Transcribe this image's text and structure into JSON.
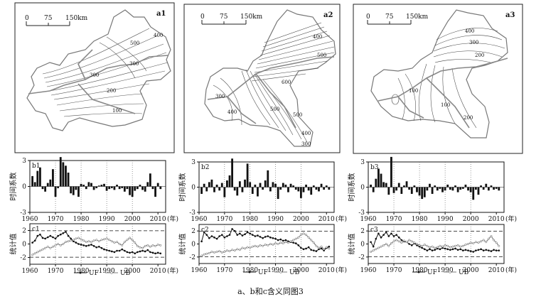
{
  "maps": [
    {
      "id": "a1",
      "scale": {
        "ticks": [
          "0",
          "75",
          "150km"
        ]
      },
      "contour_labels": [
        "500",
        "400",
        "300",
        "300",
        "200",
        "100"
      ]
    },
    {
      "id": "a2",
      "scale": {
        "ticks": [
          "0",
          "75",
          "150km"
        ]
      },
      "contour_labels": [
        "400",
        "500",
        "300",
        "400",
        "500",
        "600",
        "500",
        "400",
        "300"
      ]
    },
    {
      "id": "a3",
      "scale": {
        "ticks": [
          "0",
          "75",
          "150km"
        ]
      },
      "contour_labels": [
        "400",
        "300",
        "200",
        "100",
        "100",
        "200"
      ]
    }
  ],
  "chart_data": [
    {
      "id": "b1",
      "type": "bar",
      "ylabel": "时间系数",
      "xlabel": "(年)",
      "yticks": [
        "3",
        "0",
        "-3"
      ],
      "xticks": [
        "1960",
        "1970",
        "1980",
        "1990",
        "2000",
        "2010"
      ],
      "ylim": [
        -3,
        3
      ],
      "x_start": 1961,
      "values": [
        1.2,
        0.5,
        1.8,
        2.2,
        -0.3,
        -0.6,
        0.4,
        0.8,
        2.0,
        -1.2,
        -0.2,
        3.4,
        2.8,
        2.4,
        1.6,
        -0.8,
        -1.0,
        -0.4,
        -1.2,
        0.3,
        0.2,
        -0.3,
        0.5,
        0.4,
        -0.4,
        -0.2,
        0.1,
        0.2,
        0.3,
        -0.5,
        -0.3,
        -0.2,
        -0.4,
        0.2,
        -0.3,
        -0.2,
        -0.6,
        -0.3,
        -1.0,
        -1.2,
        -0.5,
        -0.3,
        0.2,
        -0.4,
        -0.6,
        0.5,
        1.5,
        -0.3,
        -1.2,
        0.4,
        -0.3
      ]
    },
    {
      "id": "b2",
      "type": "bar",
      "ylabel": "时间系数",
      "xlabel": "(年)",
      "yticks": [
        "3",
        "0",
        "-3"
      ],
      "xticks": [
        "1960",
        "1970",
        "1980",
        "1990",
        "2000",
        "2010"
      ],
      "ylim": [
        -3,
        3
      ],
      "x_start": 1961,
      "values": [
        -0.8,
        0.4,
        -0.5,
        0.6,
        0.9,
        -0.6,
        0.3,
        -0.4,
        0.5,
        -1.2,
        0.8,
        1.4,
        3.4,
        -0.4,
        -1.0,
        0.7,
        -0.6,
        0.9,
        2.8,
        0.6,
        -0.8,
        0.3,
        -1.1,
        0.5,
        -0.3,
        0.8,
        2.0,
        -0.5,
        0.6,
        0.4,
        -1.4,
        -0.3,
        0.5,
        0.3,
        -0.6,
        0.4,
        0.2,
        -0.3,
        -0.5,
        -1.3,
        -0.6,
        0.3,
        -0.4,
        -0.9,
        0.2,
        -0.3,
        -0.5,
        0.4,
        -0.3,
        0.2,
        -0.3
      ]
    },
    {
      "id": "b3",
      "type": "bar",
      "ylabel": "时间系数",
      "xlabel": "(年)",
      "yticks": [
        "3",
        "0",
        "-3"
      ],
      "xticks": [
        "1960",
        "1970",
        "1980",
        "1990",
        "2000",
        "2010"
      ],
      "ylim": [
        -3,
        3
      ],
      "x_start": 1961,
      "values": [
        0.3,
        -0.6,
        1.0,
        2.2,
        1.6,
        0.6,
        0.5,
        -0.9,
        3.6,
        -0.7,
        -0.4,
        0.5,
        -0.8,
        0.2,
        0.7,
        -0.3,
        -0.8,
        0.2,
        -0.6,
        -1.0,
        -1.4,
        -1.2,
        -0.4,
        0.4,
        -0.8,
        0.2,
        -0.4,
        -0.2,
        -0.6,
        -0.4,
        0.3,
        -0.3,
        -0.4,
        0.2,
        -0.6,
        -0.3,
        -0.2,
        0.3,
        -0.4,
        -0.6,
        -1.5,
        -0.3,
        -0.9,
        0.2,
        -0.3,
        0.4,
        -0.4,
        0.2,
        -0.3,
        -0.2,
        -0.4
      ]
    },
    {
      "id": "c1",
      "type": "line",
      "ylabel": "统计值",
      "xlabel": "(年)",
      "yticks": [
        "2",
        "0",
        "-2"
      ],
      "xticks": [
        "1960",
        "1970",
        "1980",
        "1990",
        "2000",
        "2010"
      ],
      "ylim": [
        -3,
        3
      ],
      "x_start": 1961,
      "thresholds": [
        1.96,
        -1.96
      ],
      "legend": [
        "UF",
        "UB"
      ],
      "series": [
        {
          "name": "UF",
          "values": [
            0.2,
            0.5,
            1.2,
            1.4,
            0.9,
            0.8,
            1.0,
            1.2,
            1.0,
            0.8,
            1.2,
            1.4,
            1.6,
            1.8,
            1.2,
            0.8,
            0.4,
            0.2,
            0.0,
            -0.1,
            -0.2,
            -0.3,
            -0.2,
            -0.1,
            -0.3,
            -0.5,
            -0.4,
            -0.6,
            -0.8,
            -0.9,
            -1.0,
            -1.1,
            -1.2,
            -1.0,
            -1.0,
            -0.8,
            -1.0,
            -1.2,
            -1.3,
            -1.2,
            -1.4,
            -1.2,
            -1.1,
            -1.0,
            -1.1,
            -0.9,
            -1.2,
            -1.3,
            -1.4,
            -1.3,
            -1.4
          ]
        },
        {
          "name": "UB",
          "values": [
            -1.6,
            -1.4,
            -1.2,
            -1.0,
            -0.8,
            -0.6,
            -0.4,
            -0.6,
            -0.4,
            -0.2,
            0.0,
            -0.2,
            0.0,
            0.3,
            0.4,
            0.5,
            0.6,
            0.8,
            0.9,
            0.7,
            0.5,
            0.3,
            0.4,
            0.3,
            0.5,
            0.6,
            0.4,
            0.6,
            0.7,
            0.8,
            0.6,
            0.4,
            0.2,
            0.3,
            0.0,
            -0.2,
            0.3,
            0.6,
            0.9,
            0.6,
            0.2,
            -0.3,
            -0.5,
            -0.6,
            -0.3,
            -0.2,
            -0.4,
            -0.2,
            -0.3,
            -0.1,
            -0.2
          ]
        }
      ]
    },
    {
      "id": "c2",
      "type": "line",
      "ylabel": "统计值",
      "xlabel": "(年)",
      "yticks": [
        "2",
        "0",
        "-2"
      ],
      "xticks": [
        "1960",
        "1970",
        "1980",
        "1990",
        "2000",
        "2010"
      ],
      "ylim": [
        -3,
        3
      ],
      "x_start": 1961,
      "thresholds": [
        1.96,
        -1.96
      ],
      "legend": [
        "UF",
        "UB"
      ],
      "series": [
        {
          "name": "UF",
          "values": [
            0.4,
            1.8,
            1.4,
            0.9,
            1.2,
            1.0,
            0.8,
            1.2,
            1.4,
            1.0,
            1.2,
            1.4,
            2.3,
            2.0,
            1.4,
            1.6,
            1.3,
            1.5,
            1.8,
            1.6,
            1.4,
            1.2,
            1.3,
            1.1,
            0.9,
            1.1,
            1.2,
            1.0,
            0.9,
            0.8,
            0.6,
            0.7,
            0.5,
            0.6,
            0.4,
            0.3,
            0.2,
            0.1,
            -0.2,
            -0.6,
            -0.8,
            -0.7,
            -0.5,
            -0.9,
            -1.0,
            -1.1,
            -0.8,
            -0.7,
            -1.0,
            -0.6,
            -0.4
          ]
        },
        {
          "name": "UB",
          "values": [
            -1.8,
            -1.6,
            -1.5,
            -1.4,
            -1.2,
            -1.3,
            -1.2,
            -1.1,
            -1.3,
            -1.2,
            -1.0,
            -1.1,
            -0.9,
            -1.0,
            -0.8,
            -0.9,
            -0.6,
            -0.7,
            -0.5,
            -0.6,
            -0.4,
            -0.3,
            -0.4,
            -0.2,
            -0.3,
            -0.1,
            -0.2,
            0.0,
            -0.1,
            0.1,
            0.0,
            0.2,
            0.1,
            0.3,
            0.2,
            0.4,
            0.6,
            0.8,
            1.0,
            1.4,
            1.6,
            1.4,
            1.0,
            0.6,
            0.2,
            -0.3,
            -0.6,
            -0.4,
            -0.8,
            -0.5,
            -0.7
          ]
        }
      ]
    },
    {
      "id": "c3",
      "type": "line",
      "ylabel": "统计值",
      "xlabel": "(年)",
      "yticks": [
        "2",
        "0",
        "-2"
      ],
      "xticks": [
        "1960",
        "1970",
        "1980",
        "1990",
        "2000",
        "2010"
      ],
      "ylim": [
        -3,
        3
      ],
      "x_start": 1961,
      "thresholds": [
        1.96,
        -1.96
      ],
      "legend": [
        "UF",
        "UB"
      ],
      "series": [
        {
          "name": "UF",
          "values": [
            0.3,
            -0.4,
            0.8,
            1.6,
            1.0,
            1.4,
            1.8,
            1.2,
            1.6,
            1.2,
            1.4,
            1.0,
            0.6,
            0.4,
            0.3,
            0.0,
            -0.2,
            0.1,
            -0.2,
            -0.4,
            -0.6,
            -0.8,
            -1.0,
            -0.8,
            -1.0,
            -0.9,
            -0.7,
            -0.8,
            -0.6,
            -0.7,
            -0.8,
            -0.9,
            -0.8,
            -0.7,
            -0.9,
            -0.8,
            -1.0,
            -0.9,
            -1.0,
            -1.1,
            -1.2,
            -1.0,
            -0.9,
            -0.8,
            -1.0,
            -0.9,
            -1.0,
            -1.1,
            -0.9,
            -1.0,
            -1.0
          ]
        },
        {
          "name": "UB",
          "values": [
            -1.2,
            -1.0,
            -0.8,
            -0.6,
            -0.4,
            -0.2,
            0.0,
            -0.3,
            0.1,
            0.4,
            0.6,
            0.4,
            0.2,
            0.5,
            0.3,
            0.6,
            0.4,
            0.2,
            0.0,
            -0.2,
            -0.3,
            -0.1,
            -0.3,
            -0.5,
            -0.4,
            -0.6,
            -0.5,
            -0.3,
            -0.4,
            -0.2,
            -0.3,
            -0.5,
            -0.4,
            -0.3,
            -0.2,
            -0.4,
            -0.3,
            -0.1,
            0.0,
            0.2,
            0.1,
            0.3,
            0.2,
            0.4,
            0.6,
            0.3,
            0.8,
            1.2,
            0.6,
            0.2,
            -0.3
          ]
        }
      ]
    }
  ],
  "caption": "a、b和c含义同图3"
}
